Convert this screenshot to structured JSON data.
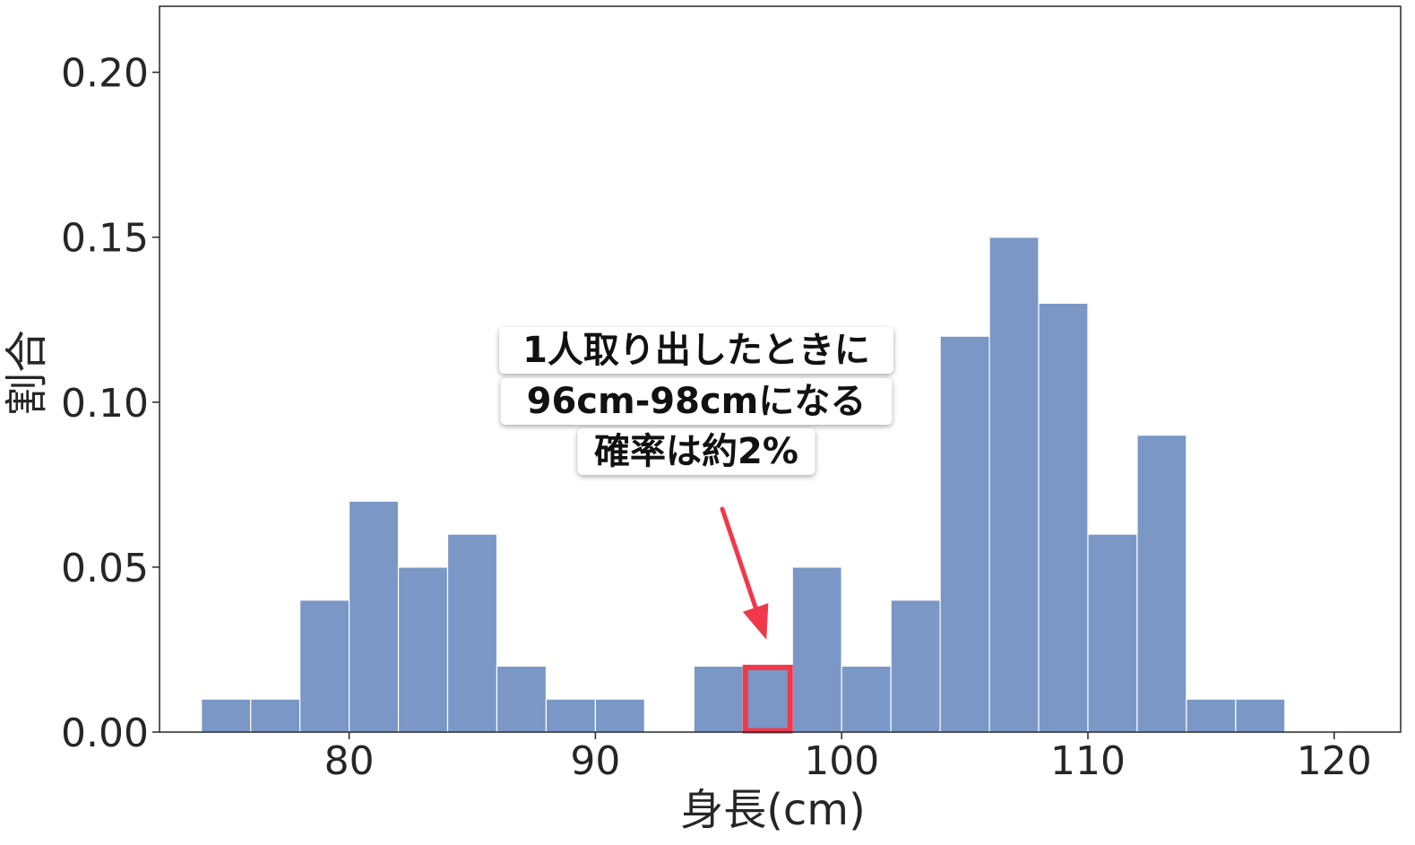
{
  "chart_data": {
    "type": "bar",
    "bin_width": 2,
    "bins": [
      {
        "start": 74,
        "end": 76,
        "value": 0.01
      },
      {
        "start": 76,
        "end": 78,
        "value": 0.01
      },
      {
        "start": 78,
        "end": 80,
        "value": 0.04
      },
      {
        "start": 80,
        "end": 82,
        "value": 0.07
      },
      {
        "start": 82,
        "end": 84,
        "value": 0.05
      },
      {
        "start": 84,
        "end": 86,
        "value": 0.06
      },
      {
        "start": 86,
        "end": 88,
        "value": 0.02
      },
      {
        "start": 88,
        "end": 90,
        "value": 0.01
      },
      {
        "start": 90,
        "end": 92,
        "value": 0.01
      },
      {
        "start": 92,
        "end": 94,
        "value": 0.0
      },
      {
        "start": 94,
        "end": 96,
        "value": 0.02
      },
      {
        "start": 96,
        "end": 98,
        "value": 0.02
      },
      {
        "start": 98,
        "end": 100,
        "value": 0.05
      },
      {
        "start": 100,
        "end": 102,
        "value": 0.02
      },
      {
        "start": 102,
        "end": 104,
        "value": 0.04
      },
      {
        "start": 104,
        "end": 106,
        "value": 0.12
      },
      {
        "start": 106,
        "end": 108,
        "value": 0.15
      },
      {
        "start": 108,
        "end": 110,
        "value": 0.13
      },
      {
        "start": 110,
        "end": 112,
        "value": 0.06
      },
      {
        "start": 112,
        "end": 114,
        "value": 0.09
      },
      {
        "start": 114,
        "end": 116,
        "value": 0.01
      },
      {
        "start": 116,
        "end": 118,
        "value": 0.01
      }
    ],
    "xlabel": "身長(cm)",
    "ylabel": "割合",
    "xlim": [
      72.3,
      122.7
    ],
    "ylim": [
      0,
      0.22
    ],
    "xticks": [
      80,
      90,
      100,
      110,
      120
    ],
    "xtick_labels": [
      "80",
      "90",
      "100",
      "110",
      "120"
    ],
    "yticks": [
      0,
      0.05,
      0.1,
      0.15,
      0.2
    ],
    "ytick_labels": [
      "0.00",
      "0.05",
      "0.10",
      "0.15",
      "0.20"
    ],
    "grid": false,
    "highlight_bin": {
      "start": 96,
      "end": 98,
      "value": 0.02
    },
    "annotation": {
      "lines": [
        "1人取り出したときに",
        "96cm-98cmになる",
        "確率は約2%"
      ],
      "arrow_to": {
        "x": 96.8,
        "y": 0.028
      }
    }
  },
  "colors": {
    "bar": "#7a97c6",
    "bar_edge": "#ffffff",
    "highlight": "#f0384a",
    "arrow": "#f0384a",
    "axis": "#262626",
    "text": "#262626"
  }
}
